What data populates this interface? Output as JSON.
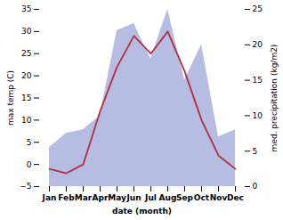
{
  "chart_data": {
    "type": "line",
    "categories": [
      "Jan",
      "Feb",
      "Mar",
      "Apr",
      "May",
      "Jun",
      "Jul",
      "Aug",
      "Sep",
      "Oct",
      "Nov",
      "Dec"
    ],
    "xlabel": "date (month)",
    "ylabel": "max temp (C)",
    "y2label": "med. precipitation (kg/m2)",
    "series": [
      {
        "type": "area",
        "axis": "y2",
        "color": "#aab0dd",
        "values": [
          5.5,
          7.5,
          8,
          10,
          22,
          23,
          18,
          25,
          15,
          20,
          7,
          8
        ]
      },
      {
        "type": "line",
        "color": "#b03040",
        "values": [
          -1,
          -2,
          0,
          12,
          22,
          29,
          25,
          30,
          21,
          10,
          2,
          -1
        ]
      }
    ],
    "ylim": [
      -5,
      35
    ],
    "yticks": [
      -5,
      0,
      5,
      10,
      15,
      20,
      25,
      30,
      35
    ],
    "y2lim": [
      0,
      25
    ],
    "y2ticks": [
      0,
      5,
      10,
      15,
      20,
      25
    ],
    "grid": false
  }
}
